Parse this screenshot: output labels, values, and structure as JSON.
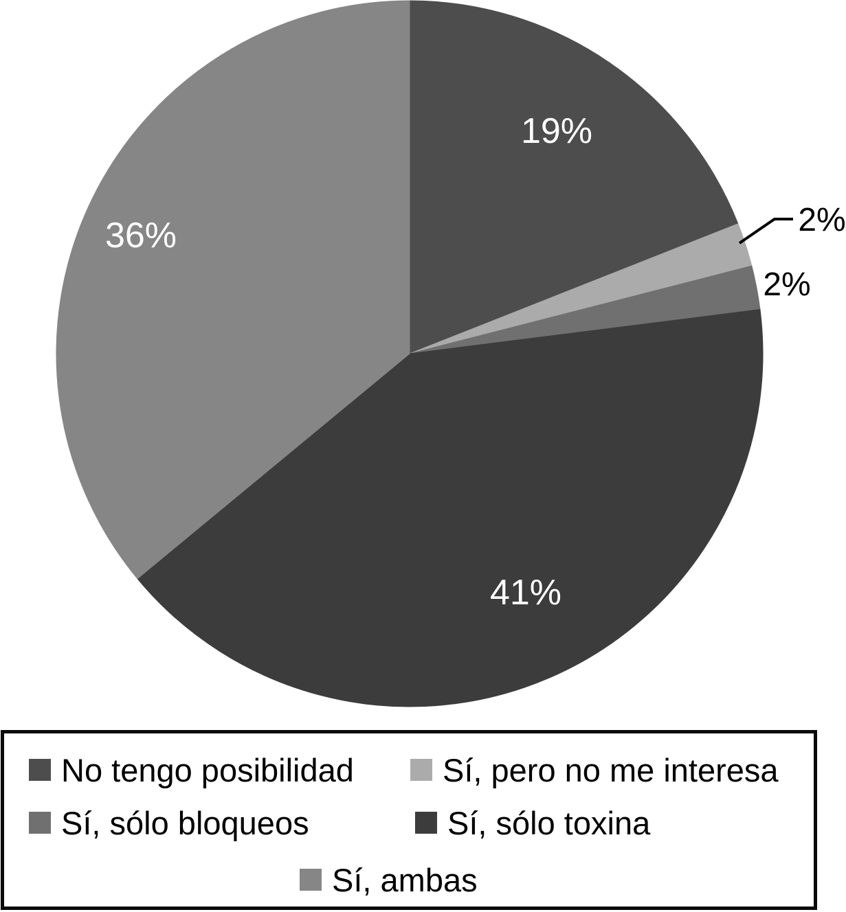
{
  "chart_data": {
    "type": "pie",
    "title": "",
    "unit": "%",
    "rotation": "starts at 12 o'clock, clockwise",
    "background": "#ffffff",
    "slices": [
      {
        "label": "No tengo posibilidad",
        "value": 19,
        "value_label": "19%",
        "color": "#4d4d4d",
        "value_label_color": "#ffffff",
        "label_placement": "inside"
      },
      {
        "label": "Sí, pero no me interesa",
        "value": 2,
        "value_label": "2%",
        "color": "#ababab",
        "value_label_color": "#000000",
        "label_placement": "outside-leader-line"
      },
      {
        "label": "Sí, sólo bloqueos",
        "value": 2,
        "value_label": "2%",
        "color": "#707070",
        "value_label_color": "#000000",
        "label_placement": "outside"
      },
      {
        "label": "Sí, sólo toxina",
        "value": 41,
        "value_label": "41%",
        "color": "#3c3c3c",
        "value_label_color": "#ffffff",
        "label_placement": "inside"
      },
      {
        "label": "Sí, ambas",
        "value": 36,
        "value_label": "36%",
        "color": "#868686",
        "value_label_color": "#ffffff",
        "label_placement": "inside"
      }
    ],
    "legend_position": "bottom-box",
    "legend_border_color": "#0a0a0a",
    "legend_rows": [
      [
        0,
        1
      ],
      [
        2,
        3
      ],
      [
        4
      ]
    ],
    "leader_line_color": "#000000"
  }
}
